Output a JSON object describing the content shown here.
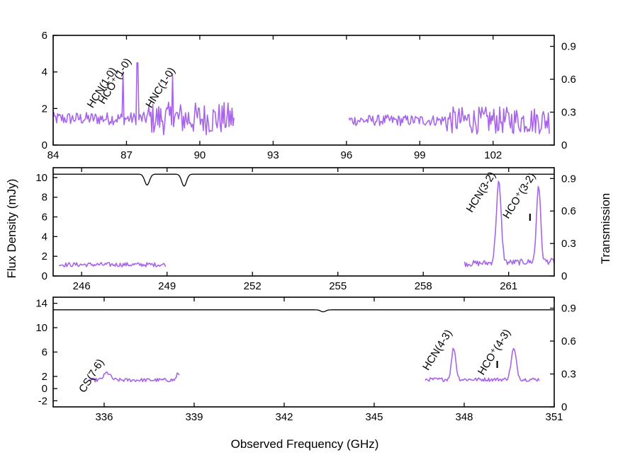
{
  "colors": {
    "spectrum": "#a766e8",
    "transmission": "#000000",
    "frame": "#000000"
  },
  "chart_data": {
    "type": "line",
    "xlabel": "Observed Frequency (GHz)",
    "ylabel_left": "Flux Density (mJy)",
    "ylabel_right": "Transmission",
    "panels": [
      {
        "id": "top",
        "xlim": [
          84,
          104.5
        ],
        "ylim": [
          0,
          6
        ],
        "y2lim": [
          0,
          1.0
        ],
        "xticks": [
          84,
          87,
          90,
          93,
          96,
          99,
          102
        ],
        "xtick_labels": [
          "84",
          "87",
          "90",
          "93",
          "96",
          "99",
          "102"
        ],
        "yticks": [
          0,
          2,
          4,
          6
        ],
        "ytick_labels": [
          "0",
          "2",
          "4",
          "6"
        ],
        "y2ticks": [
          0,
          0.3,
          0.6,
          0.9
        ],
        "y2tick_labels": [
          "0",
          "0.3",
          "0.6",
          "0.9"
        ],
        "spectrum_segments": [
          {
            "x0": 83.9,
            "x1": 91.4,
            "level": 1.45,
            "noise": 0.35,
            "widen_after": 87.8,
            "noise2": 0.9,
            "peaks": [
              {
                "x": 86.85,
                "h": 4.0
              },
              {
                "x": 87.45,
                "h": 4.5
              },
              {
                "x": 88.9,
                "h": 3.9
              }
            ]
          },
          {
            "x0": 96.1,
            "x1": 104.3,
            "level": 1.35,
            "noise": 0.3,
            "widen_after": 100.0,
            "noise2": 0.75,
            "peaks": []
          }
        ],
        "line_labels": [
          {
            "text": "HCN(1-0)",
            "x": 86.6,
            "y": 4.1
          },
          {
            "text": "HCO⁺(1-0)",
            "x": 87.2,
            "y": 4.6
          },
          {
            "text": "HNC(1-0)",
            "x": 89.0,
            "y": 4.1
          }
        ]
      },
      {
        "id": "middle",
        "xlim": [
          245,
          262.6
        ],
        "ylim": [
          0,
          11
        ],
        "y2lim": [
          0,
          1.0
        ],
        "xticks": [
          246,
          249,
          252,
          255,
          258,
          261
        ],
        "xtick_labels": [
          "246",
          "249",
          "252",
          "255",
          "258",
          "261"
        ],
        "yticks": [
          0,
          2,
          4,
          6,
          8,
          10
        ],
        "ytick_labels": [
          "0",
          "2",
          "4",
          "6",
          "8",
          "10"
        ],
        "y2ticks": [
          0,
          0.3,
          0.6,
          0.9
        ],
        "y2tick_labels": [
          "0",
          "0.3",
          "0.6",
          "0.9"
        ],
        "transmission": {
          "base": 0.94,
          "dips": [
            {
              "x": 248.3,
              "depth": 0.1
            },
            {
              "x": 249.6,
              "depth": 0.11
            }
          ]
        },
        "spectrum_segments": [
          {
            "x0": 245.2,
            "x1": 248.95,
            "level": 1.15,
            "noise": 0.22,
            "peaks": []
          },
          {
            "x0": 259.45,
            "x1": 262.6,
            "level": 1.25,
            "noise": 0.3,
            "slope": 0.25,
            "peaks": [
              {
                "x": 260.65,
                "h": 9.4,
                "w": 0.12
              },
              {
                "x": 262.05,
                "h": 9.1,
                "w": 0.1
              }
            ]
          }
        ],
        "markers": [
          {
            "x": 261.75,
            "y": 5.6,
            "text": "I"
          }
        ],
        "line_labels": [
          {
            "text": "HCN(3-2)",
            "x": 260.55,
            "y": 10.3
          },
          {
            "text": "HCO⁺(3-2)",
            "x": 261.95,
            "y": 10.2
          }
        ]
      },
      {
        "id": "bottom",
        "xlim": [
          334.3,
          351
        ],
        "ylim": [
          -3,
          15
        ],
        "y2lim": [
          0,
          1.0
        ],
        "xticks": [
          336,
          339,
          342,
          345,
          348,
          351
        ],
        "xtick_labels": [
          "336",
          "339",
          "342",
          "345",
          "348",
          "351"
        ],
        "yticks": [
          -2,
          0,
          2,
          6,
          10,
          14
        ],
        "ytick_labels": [
          "-2",
          "0",
          "2",
          "6",
          "10",
          "14"
        ],
        "y2ticks": [
          0,
          0.3,
          0.6,
          0.9
        ],
        "y2tick_labels": [
          "0",
          "0.3",
          "0.6",
          "0.9"
        ],
        "transmission": {
          "base": 0.885,
          "dips": [
            {
              "x": 343.3,
              "depth": 0.018
            }
          ]
        },
        "spectrum_segments": [
          {
            "x0": 335.5,
            "x1": 338.5,
            "level": 1.4,
            "noise": 0.3,
            "peaks": [
              {
                "x": 336.1,
                "h": 2.6,
                "w": 0.15
              },
              {
                "x": 338.45,
                "h": 2.5,
                "w": 0.06
              }
            ]
          },
          {
            "x0": 346.7,
            "x1": 350.5,
            "level": 1.5,
            "noise": 0.3,
            "peaks": [
              {
                "x": 347.65,
                "h": 6.7,
                "w": 0.1
              },
              {
                "x": 349.65,
                "h": 6.5,
                "w": 0.12
              }
            ]
          }
        ],
        "markers": [
          {
            "x": 349.1,
            "y": 3.4,
            "text": "I"
          }
        ],
        "line_labels": [
          {
            "text": "CS(7-6)",
            "x": 336.0,
            "y": 4.4
          },
          {
            "text": "HCN(4-3)",
            "x": 347.6,
            "y": 9.2
          },
          {
            "text": "HCO⁺(4-3)",
            "x": 349.55,
            "y": 9.3
          }
        ]
      }
    ]
  }
}
